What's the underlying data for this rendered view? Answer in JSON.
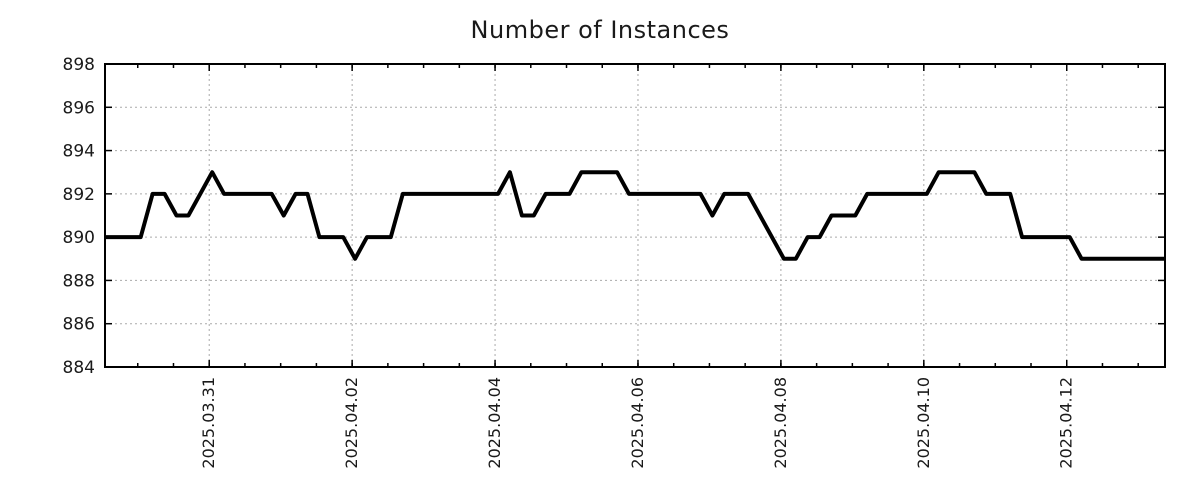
{
  "chart_data": {
    "type": "line",
    "title": "Number of Instances",
    "legend": "none",
    "grid": "on",
    "x_axis": {
      "start": "2025-03-29 13:00",
      "end": "2025-04-13 09:00",
      "major_ticks": [
        {
          "t": "2025-03-31 00:00",
          "label": "2025.03.31"
        },
        {
          "t": "2025-04-02 00:00",
          "label": "2025.04.02"
        },
        {
          "t": "2025-04-04 00:00",
          "label": "2025.04.04"
        },
        {
          "t": "2025-04-06 00:00",
          "label": "2025.04.06"
        },
        {
          "t": "2025-04-08 00:00",
          "label": "2025.04.08"
        },
        {
          "t": "2025-04-10 00:00",
          "label": "2025.04.10"
        },
        {
          "t": "2025-04-12 00:00",
          "label": "2025.04.12"
        }
      ],
      "minor_tick_hours": 12,
      "label_rotation_deg": -90
    },
    "y_axis": {
      "min": 884,
      "max": 898,
      "tick_step": 2,
      "tick_labels": [
        "884",
        "886",
        "888",
        "890",
        "892",
        "894",
        "896",
        "898"
      ]
    },
    "series": [
      {
        "name": "instances",
        "color": "#000000",
        "line_width": 4,
        "points": [
          {
            "t": "2025-03-29 13:00",
            "v": 890
          },
          {
            "t": "2025-03-30 01:00",
            "v": 890
          },
          {
            "t": "2025-03-30 05:00",
            "v": 892
          },
          {
            "t": "2025-03-30 09:00",
            "v": 892
          },
          {
            "t": "2025-03-30 13:00",
            "v": 891
          },
          {
            "t": "2025-03-30 17:00",
            "v": 891
          },
          {
            "t": "2025-03-31 01:00",
            "v": 893
          },
          {
            "t": "2025-03-31 05:00",
            "v": 892
          },
          {
            "t": "2025-03-31 21:00",
            "v": 892
          },
          {
            "t": "2025-04-01 01:00",
            "v": 891
          },
          {
            "t": "2025-04-01 05:00",
            "v": 892
          },
          {
            "t": "2025-04-01 09:00",
            "v": 892
          },
          {
            "t": "2025-04-01 13:00",
            "v": 890
          },
          {
            "t": "2025-04-01 21:00",
            "v": 890
          },
          {
            "t": "2025-04-02 01:00",
            "v": 889
          },
          {
            "t": "2025-04-02 05:00",
            "v": 890
          },
          {
            "t": "2025-04-02 13:00",
            "v": 890
          },
          {
            "t": "2025-04-02 17:00",
            "v": 892
          },
          {
            "t": "2025-04-04 01:00",
            "v": 892
          },
          {
            "t": "2025-04-04 05:00",
            "v": 893
          },
          {
            "t": "2025-04-04 09:00",
            "v": 891
          },
          {
            "t": "2025-04-04 13:00",
            "v": 891
          },
          {
            "t": "2025-04-04 17:00",
            "v": 892
          },
          {
            "t": "2025-04-05 01:00",
            "v": 892
          },
          {
            "t": "2025-04-05 05:00",
            "v": 893
          },
          {
            "t": "2025-04-05 17:00",
            "v": 893
          },
          {
            "t": "2025-04-05 21:00",
            "v": 892
          },
          {
            "t": "2025-04-06 21:00",
            "v": 892
          },
          {
            "t": "2025-04-07 01:00",
            "v": 891
          },
          {
            "t": "2025-04-07 05:00",
            "v": 892
          },
          {
            "t": "2025-04-07 13:00",
            "v": 892
          },
          {
            "t": "2025-04-08 01:00",
            "v": 889
          },
          {
            "t": "2025-04-08 05:00",
            "v": 889
          },
          {
            "t": "2025-04-08 09:00",
            "v": 890
          },
          {
            "t": "2025-04-08 13:00",
            "v": 890
          },
          {
            "t": "2025-04-08 17:00",
            "v": 891
          },
          {
            "t": "2025-04-09 01:00",
            "v": 891
          },
          {
            "t": "2025-04-09 05:00",
            "v": 892
          },
          {
            "t": "2025-04-10 01:00",
            "v": 892
          },
          {
            "t": "2025-04-10 05:00",
            "v": 893
          },
          {
            "t": "2025-04-10 17:00",
            "v": 893
          },
          {
            "t": "2025-04-10 21:00",
            "v": 892
          },
          {
            "t": "2025-04-11 05:00",
            "v": 892
          },
          {
            "t": "2025-04-11 09:00",
            "v": 890
          },
          {
            "t": "2025-04-12 01:00",
            "v": 890
          },
          {
            "t": "2025-04-12 05:00",
            "v": 889
          },
          {
            "t": "2025-04-13 09:00",
            "v": 889
          }
        ]
      }
    ]
  },
  "style": {
    "background": "#ffffff",
    "grid_color": "#aaaaaa",
    "axis_color": "#000000",
    "text_color": "#1a1a1a"
  }
}
